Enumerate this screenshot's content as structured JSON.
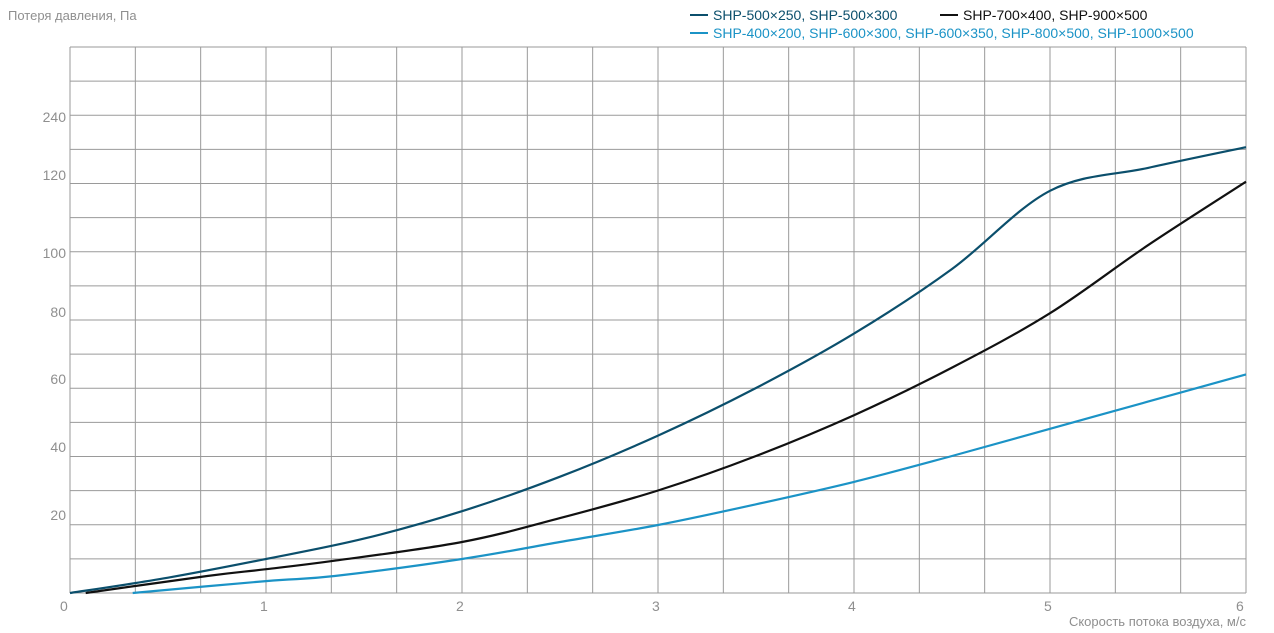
{
  "chart_data": {
    "type": "line",
    "ylabel": "Потеря давления, Па",
    "xlabel": "Скорость потока воздуха, м/с",
    "x_ticks": [
      "0",
      "1",
      "2",
      "3",
      "4",
      "5",
      "6"
    ],
    "y_ticks": [
      "20",
      "40",
      "60",
      "80",
      "100",
      "120",
      "240"
    ],
    "xlim": [
      0,
      6
    ],
    "grid": true,
    "legend_position": "top-right",
    "series": [
      {
        "name": "SHP-500×250, SHP-500×300",
        "color": "#0b4f6c",
        "x": [
          0,
          0.5,
          1,
          1.5,
          2,
          2.5,
          3,
          3.5,
          4,
          4.5,
          5,
          5.5,
          6
        ],
        "y": [
          0,
          4.5,
          10,
          16,
          24,
          34,
          46,
          60,
          76,
          95,
          118,
          148,
          184
        ]
      },
      {
        "name": "SHP-700×400, SHP-900×500",
        "color": "#111111",
        "x": [
          0.08,
          0.7,
          1,
          1.35,
          2,
          2.5,
          3,
          3.5,
          4,
          4.5,
          5,
          5.5,
          6
        ],
        "y": [
          0,
          5,
          7,
          9.5,
          15,
          22,
          30,
          40,
          52,
          66,
          82,
          102,
          124
        ]
      },
      {
        "name": "SHP-400×200, SHP-600×300, SHP-600×350, SHP-800×500, SHP-1000×500",
        "color": "#1b93c6",
        "x": [
          0.32,
          1,
          1.35,
          2,
          2.5,
          3,
          3.5,
          4,
          4.5,
          5,
          5.5,
          6
        ],
        "y": [
          0,
          3.5,
          5,
          10,
          15,
          20,
          26,
          32.5,
          40,
          48,
          56,
          64
        ]
      }
    ]
  }
}
